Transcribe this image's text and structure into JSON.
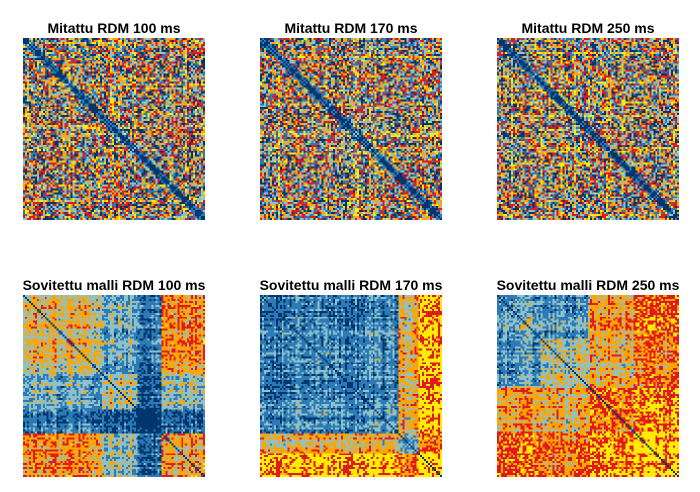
{
  "chart_data": [
    {
      "type": "heatmap",
      "title": "Mitattu RDM 100 ms",
      "matrix_size": 92,
      "colormap": [
        "#00366d",
        "#2c7bb6",
        "#8fc1c9",
        "#ffa500",
        "#e31a1c",
        "#ffec00"
      ],
      "diagonal": 0
    },
    {
      "type": "heatmap",
      "title": "Mitattu RDM 170 ms",
      "matrix_size": 92,
      "colormap": [
        "#00366d",
        "#2c7bb6",
        "#8fc1c9",
        "#ffa500",
        "#e31a1c",
        "#ffec00"
      ],
      "diagonal": 0
    },
    {
      "type": "heatmap",
      "title": "Mitattu RDM 250 ms",
      "matrix_size": 92,
      "colormap": [
        "#00366d",
        "#2c7bb6",
        "#8fc1c9",
        "#ffa500",
        "#e31a1c",
        "#ffec00"
      ],
      "diagonal": 0
    },
    {
      "type": "heatmap",
      "title": "Sovitettu malli RDM 100 ms",
      "matrix_size": 92,
      "colormap": [
        "#00366d",
        "#2c7bb6",
        "#8fc1c9",
        "#ffa500",
        "#e31a1c",
        "#ffec00"
      ],
      "diagonal": 0
    },
    {
      "type": "heatmap",
      "title": "Sovitettu malli RDM 170 ms",
      "matrix_size": 92,
      "colormap": [
        "#00366d",
        "#2c7bb6",
        "#8fc1c9",
        "#ffa500",
        "#e31a1c",
        "#ffec00"
      ],
      "diagonal": 0
    },
    {
      "type": "heatmap",
      "title": "Sovitettu malli RDM 250 ms",
      "matrix_size": 92,
      "colormap": [
        "#00366d",
        "#2c7bb6",
        "#8fc1c9",
        "#ffa500",
        "#e31a1c",
        "#ffec00"
      ],
      "diagonal": 0
    }
  ]
}
